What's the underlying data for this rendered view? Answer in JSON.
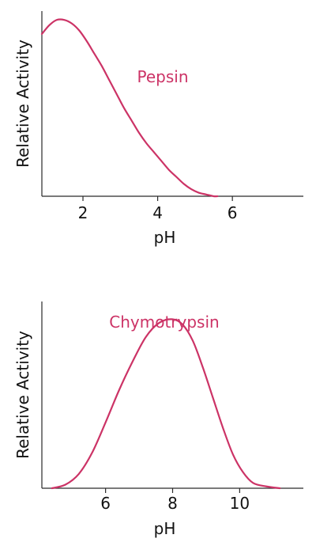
{
  "chart_data": [
    {
      "type": "line",
      "title": "",
      "xlabel": "pH",
      "ylabel": "Relative Activity",
      "xlim": [
        0.9,
        7.9
      ],
      "ylim": [
        0,
        1.05
      ],
      "xticks": [
        2,
        4,
        6
      ],
      "xtick_labels": [
        "2",
        "4",
        "6"
      ],
      "yticks": [],
      "grid": false,
      "line_color": "#cc3366",
      "series": [
        {
          "name": "Pepsin",
          "x": [
            0.9,
            1.1,
            1.3,
            1.5,
            1.7,
            1.9,
            2.1,
            2.3,
            2.5,
            2.7,
            2.9,
            3.1,
            3.3,
            3.5,
            3.7,
            3.9,
            4.1,
            4.3,
            4.5,
            4.7,
            4.9,
            5.1,
            5.3,
            5.5,
            5.6
          ],
          "y": [
            0.92,
            0.97,
            1.0,
            1.0,
            0.98,
            0.94,
            0.88,
            0.81,
            0.74,
            0.66,
            0.58,
            0.5,
            0.43,
            0.36,
            0.3,
            0.25,
            0.2,
            0.15,
            0.11,
            0.07,
            0.04,
            0.02,
            0.01,
            0.0,
            0.0
          ]
        }
      ]
    },
    {
      "type": "line",
      "title": "",
      "xlabel": "pH",
      "ylabel": "Relative Activity",
      "xlim": [
        4.1,
        11.9
      ],
      "ylim": [
        0,
        1.05
      ],
      "xticks": [
        6,
        8,
        10
      ],
      "xtick_labels": [
        "6",
        "8",
        "10"
      ],
      "yticks": [],
      "grid": false,
      "line_color": "#cc3366",
      "series": [
        {
          "name": "Chymotrypsin",
          "x": [
            4.4,
            4.8,
            5.2,
            5.6,
            6.0,
            6.4,
            6.8,
            7.2,
            7.6,
            8.0,
            8.3,
            8.6,
            8.9,
            9.2,
            9.5,
            9.8,
            10.1,
            10.4,
            10.8,
            11.2
          ],
          "y": [
            0.0,
            0.02,
            0.08,
            0.2,
            0.37,
            0.55,
            0.71,
            0.85,
            0.93,
            0.95,
            0.92,
            0.83,
            0.68,
            0.51,
            0.34,
            0.19,
            0.09,
            0.03,
            0.01,
            0.0
          ]
        }
      ]
    }
  ]
}
